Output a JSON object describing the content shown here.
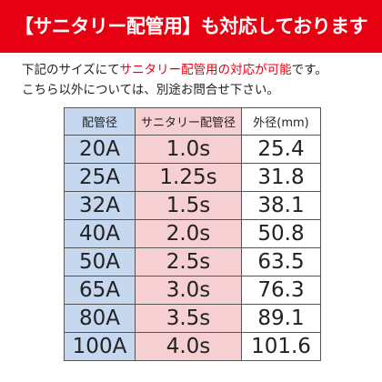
{
  "banner": {
    "title": "【サニタリー配管用】も対応しております"
  },
  "notice": {
    "line1": [
      "下記のサイズにて",
      "サニタリー配管用の対応が可能",
      "です。"
    ],
    "line2": "こちら以外については、別途お問合せ下さい。"
  },
  "table": {
    "header": [
      "配管径",
      "サニタリー配管径",
      "外径(mm)"
    ],
    "rows": [
      [
        "20A",
        "1.0s",
        "25.4"
      ],
      [
        "25A",
        "1.25s",
        "31.8"
      ],
      [
        "32A",
        "1.5s",
        "38.1"
      ],
      [
        "40A",
        "2.0s",
        "50.8"
      ],
      [
        "50A",
        "2.5s",
        "63.5"
      ],
      [
        "65A",
        "3.0s",
        "76.3"
      ],
      [
        "80A",
        "3.5s",
        "89.1"
      ],
      [
        "100A",
        "4.0s",
        "101.6"
      ]
    ]
  }
}
